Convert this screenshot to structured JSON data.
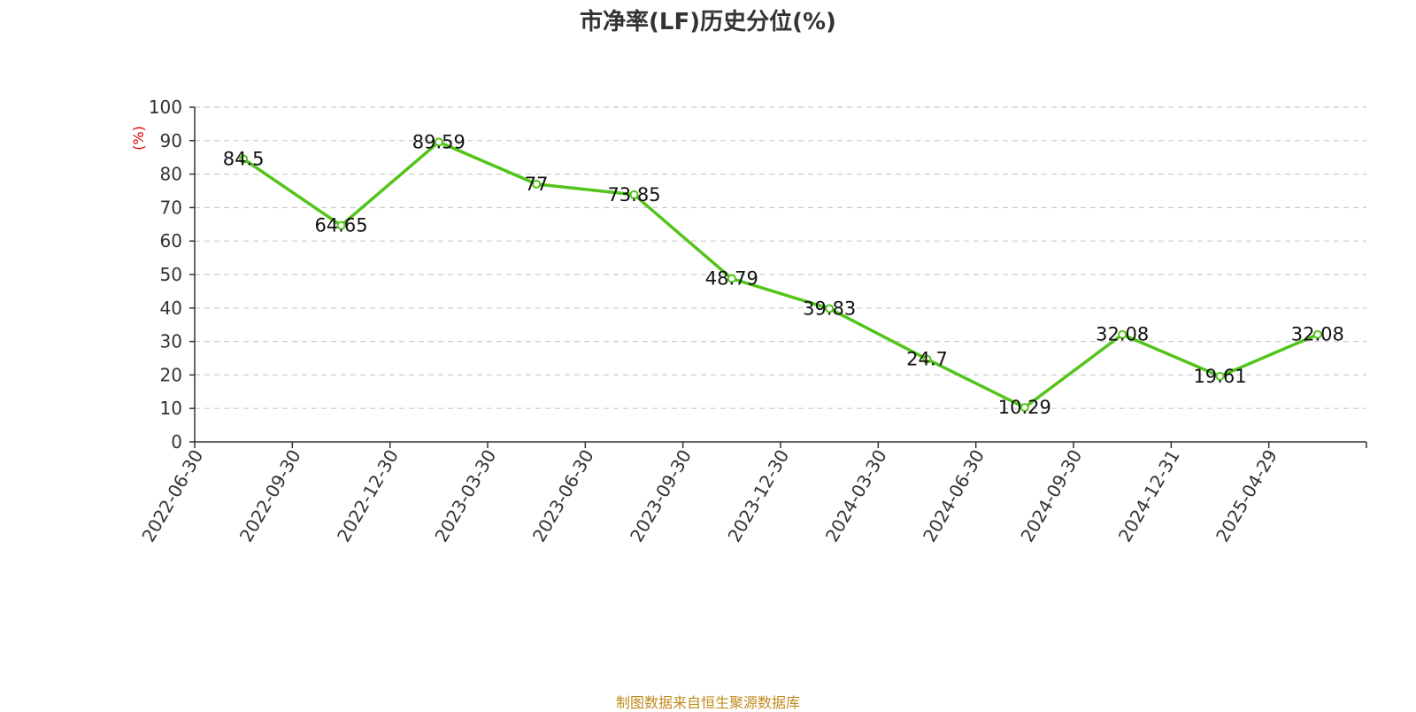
{
  "title": "市净率(LF)历史分位(%)",
  "source": "制图数据来自恒生聚源数据库",
  "colors": {
    "line": "#52c41a",
    "unit": "#e00000",
    "grid": "#cccccc",
    "axis": "#333333"
  },
  "chart_data": {
    "type": "line",
    "title": "市净率(LF)历史分位(%)",
    "xlabel": "",
    "ylabel": "(%)",
    "ylim": [
      0,
      100
    ],
    "yticks": [
      0,
      10,
      20,
      30,
      40,
      50,
      60,
      70,
      80,
      90,
      100
    ],
    "grid": true,
    "categories": [
      "2022-06-30",
      "2022-09-30",
      "2022-12-30",
      "2023-03-30",
      "2023-06-30",
      "2023-09-30",
      "2023-12-30",
      "2024-03-30",
      "2024-06-30",
      "2024-09-30",
      "2024-12-31",
      "2025-04-29"
    ],
    "series": [
      {
        "values": [
          84.5,
          64.65,
          89.59,
          77,
          73.85,
          48.79,
          39.83,
          24.7,
          10.29,
          32.08,
          19.61,
          32.08
        ]
      }
    ]
  }
}
